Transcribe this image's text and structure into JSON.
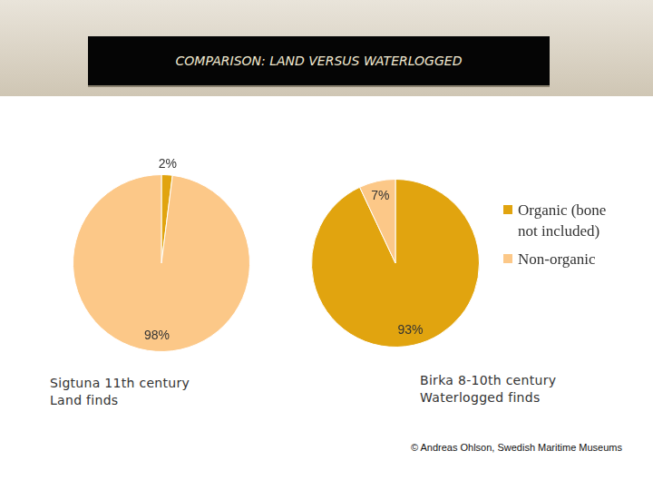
{
  "header": {
    "title": "COMPARISON: LAND VERSUS WATERLOGGED"
  },
  "chart_data": [
    {
      "type": "pie",
      "title": [
        "Sigtuna 11th century",
        "Land finds"
      ],
      "categories": [
        "Organic (bone not included)",
        "Non-organic"
      ],
      "values": [
        2,
        98
      ],
      "value_labels": [
        "2%",
        "98%"
      ],
      "data_labels": true,
      "colors": [
        "#e1a40f",
        "#fcc888"
      ]
    },
    {
      "type": "pie",
      "title": [
        "Birka 8-10th century",
        "Waterlogged finds"
      ],
      "categories": [
        "Organic (bone not included)",
        "Non-organic"
      ],
      "values": [
        93,
        7
      ],
      "value_labels": [
        "93%",
        "7%"
      ],
      "data_labels": true,
      "colors": [
        "#e1a40f",
        "#fcc888"
      ],
      "legend": "right"
    }
  ],
  "footer": {
    "credit": "© Andreas Ohlson, Swedish Maritime Museums"
  }
}
